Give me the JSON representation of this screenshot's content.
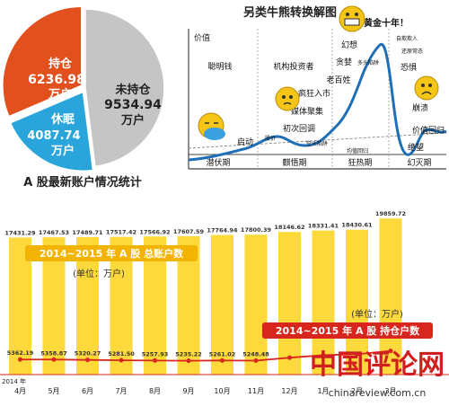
{
  "pie": {
    "caption": "A 股最新账户情况统计",
    "colors": {
      "orange": "#e2501d",
      "blue": "#2aa5dc",
      "gray": "#c5c5c5"
    },
    "slices": [
      {
        "label": "未持仓",
        "value": "9534.94",
        "unit": "万户",
        "color": "#c5c5c5"
      },
      {
        "label": "持仓",
        "value": "6236.98",
        "unit": "万户",
        "color": "#e2501d"
      },
      {
        "label": "休眠",
        "value": "4087.74",
        "unit": "万户",
        "color": "#2aa5dc"
      }
    ]
  },
  "cycle": {
    "title": "另类牛熊转换解图",
    "ylabel": "价值",
    "phases": [
      "潜伏期",
      "麒悟期",
      "狂热期",
      "幻灭期"
    ],
    "labels": {
      "smart": "聪明钱",
      "inst": "机构投资者",
      "start": "启动",
      "stock": "股价",
      "pullback": "初次回调",
      "bearcatch": "空头陷阱",
      "media": "媒体聚集",
      "mania": "疯狂入市",
      "retail": "老百姓",
      "greed": "贪婪",
      "illusion": "幻想",
      "gold": "黄金十年！",
      "newparadigm": "自欺欺人",
      "bulltrap": "多头陷阱",
      "denial": "还原常态",
      "fear": "恐惧",
      "crash": "崩溃",
      "capitulate": "绝望",
      "revert": "价值回归",
      "rebound": "均值回归"
    }
  },
  "chart_data": {
    "type": "bar",
    "categories": [
      "4月",
      "5月",
      "6月",
      "7月",
      "8月",
      "9月",
      "10月",
      "11月",
      "12月",
      "1月",
      "2月",
      "3月"
    ],
    "year_label": "2014 年",
    "series": [
      {
        "name": "2014~2015 年 A 股 总账户数",
        "values": [
          17431.29,
          17467.53,
          17489.71,
          17517.42,
          17566.92,
          17607.59,
          17764.94,
          17800.39,
          18146.62,
          18331.41,
          18430.61,
          19859.72
        ]
      },
      {
        "name": "2014~2015 年 A 股 持仓户数",
        "values": [
          5362.19,
          5358.87,
          5320.27,
          5281.5,
          5257.93,
          5235.22,
          5261.02,
          5248.48,
          5550.0,
          5800.0,
          5900.0,
          6236.98
        ]
      }
    ],
    "value_labels_total": [
      "17431.29",
      "17467.53",
      "17489.71",
      "17517.42",
      "17566.92",
      "17607.59",
      "17764.94",
      "17800.39",
      "18146.62",
      "18331.41",
      "18430.61",
      "19859.72"
    ],
    "value_labels_hold": [
      "5362.19",
      "5358.87",
      "5320.27",
      "5281.50",
      "5257.93",
      "5235.22",
      "5261.02",
      "5248.48"
    ],
    "unit_note": "(单位：万户)",
    "bar_color": "#fdd93b",
    "line_color": "#d7261e"
  },
  "watermark": {
    "text": "中国评论网",
    "url": "chinareview.com.cn"
  }
}
